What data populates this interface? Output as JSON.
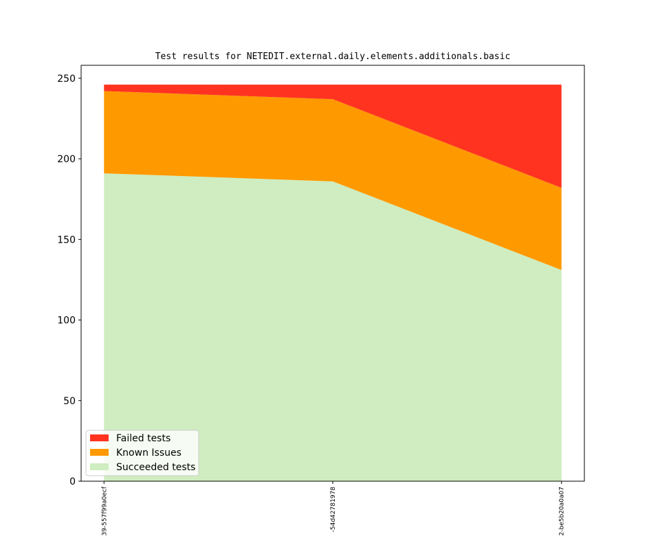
{
  "chart_data": {
    "type": "stacked-area",
    "title": "Test results for NETEDIT.external.daily.elements.additionals.basic",
    "categories": [
      "39-557f99a0ecf",
      "-54d42781978",
      "2-be5b20a0a07"
    ],
    "series": [
      {
        "name": "Succeeded tests",
        "color": "#cfedc0",
        "values": [
          191,
          186,
          131
        ]
      },
      {
        "name": "Known Issues",
        "color": "#ff9900",
        "values": [
          51,
          51,
          51
        ]
      },
      {
        "name": "Failed tests",
        "color": "#ff3320",
        "values": [
          4,
          9,
          64
        ]
      }
    ],
    "ylim": [
      0,
      258
    ],
    "yticks": [
      0,
      50,
      100,
      150,
      200,
      250
    ],
    "legend": "lower left"
  }
}
